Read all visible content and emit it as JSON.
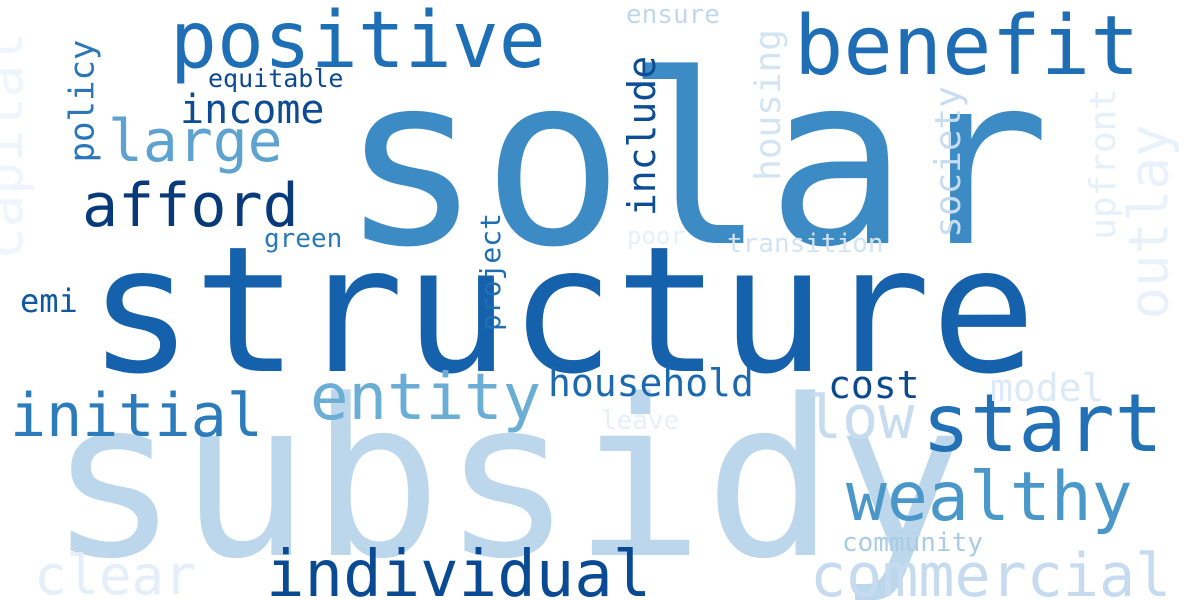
{
  "words": [
    {
      "text": "solar",
      "color": "#3d8bc4"
    },
    {
      "text": "structure",
      "color": "#1661ab"
    },
    {
      "text": "subsidy",
      "color": "#bcd7ec"
    },
    {
      "text": "positive",
      "color": "#1e6fb5"
    },
    {
      "text": "benefit",
      "color": "#1f6db4"
    },
    {
      "text": "start",
      "color": "#2270b6"
    },
    {
      "text": "wealthy",
      "color": "#4a97c9"
    },
    {
      "text": "individual",
      "color": "#0a4a92"
    },
    {
      "text": "commercial",
      "color": "#c6dbef"
    },
    {
      "text": "entity",
      "color": "#6aaed6"
    },
    {
      "text": "initial",
      "color": "#2c7bba"
    },
    {
      "text": "afford",
      "color": "#083a7a"
    },
    {
      "text": "large",
      "color": "#5ea3d0"
    },
    {
      "text": "income",
      "color": "#0d4c94"
    },
    {
      "text": "low",
      "color": "#c7dcef"
    },
    {
      "text": "clear",
      "color": "#e4eff9"
    },
    {
      "text": "household",
      "color": "#1c69b0"
    },
    {
      "text": "cost",
      "color": "#0c4a8f"
    },
    {
      "text": "policy",
      "color": "#2a76b7"
    },
    {
      "text": "include",
      "color": "#0d4d95"
    },
    {
      "text": "housing",
      "color": "#d3e4f3"
    },
    {
      "text": "society",
      "color": "#c8dcf0"
    },
    {
      "text": "capital",
      "color": "#eef5fc"
    },
    {
      "text": "outlay",
      "color": "#e9f2fa"
    },
    {
      "text": "upfront",
      "color": "#e6f0f9"
    },
    {
      "text": "project",
      "color": "#1f6eb3"
    },
    {
      "text": "equitable",
      "color": "#0c4a8f"
    },
    {
      "text": "green",
      "color": "#2a79b8"
    },
    {
      "text": "emi",
      "color": "#0e58a2"
    },
    {
      "text": "ensure",
      "color": "#bfd8ed"
    },
    {
      "text": "poor",
      "color": "#e6f0f9"
    },
    {
      "text": "transition",
      "color": "#d2e3f3"
    },
    {
      "text": "model",
      "color": "#dce9f6"
    },
    {
      "text": "leave",
      "color": "#e6f0f9"
    },
    {
      "text": "community",
      "color": "#a9cce4"
    }
  ]
}
